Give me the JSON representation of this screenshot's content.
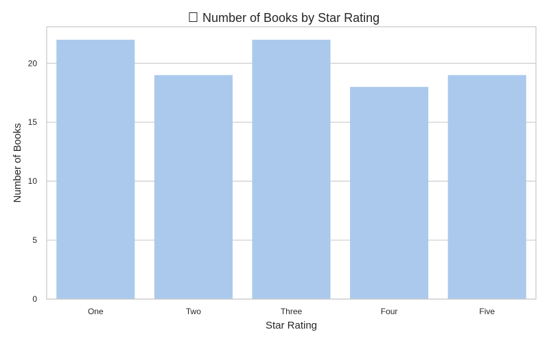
{
  "chart_data": {
    "type": "bar",
    "title": "Number of Books by Star Rating",
    "title_icon": "missing-glyph-box",
    "xlabel": "Star Rating",
    "ylabel": "Number of Books",
    "categories": [
      "One",
      "Two",
      "Three",
      "Four",
      "Five"
    ],
    "values": [
      22,
      19,
      22,
      18,
      19
    ],
    "ylim": [
      0,
      23.1
    ],
    "yticks": [
      0,
      5,
      10,
      15,
      20
    ],
    "grid": "horizontal",
    "bar_color": "#abc9ed",
    "grid_color": "#cccccc",
    "frame_color": "#cccccc"
  }
}
